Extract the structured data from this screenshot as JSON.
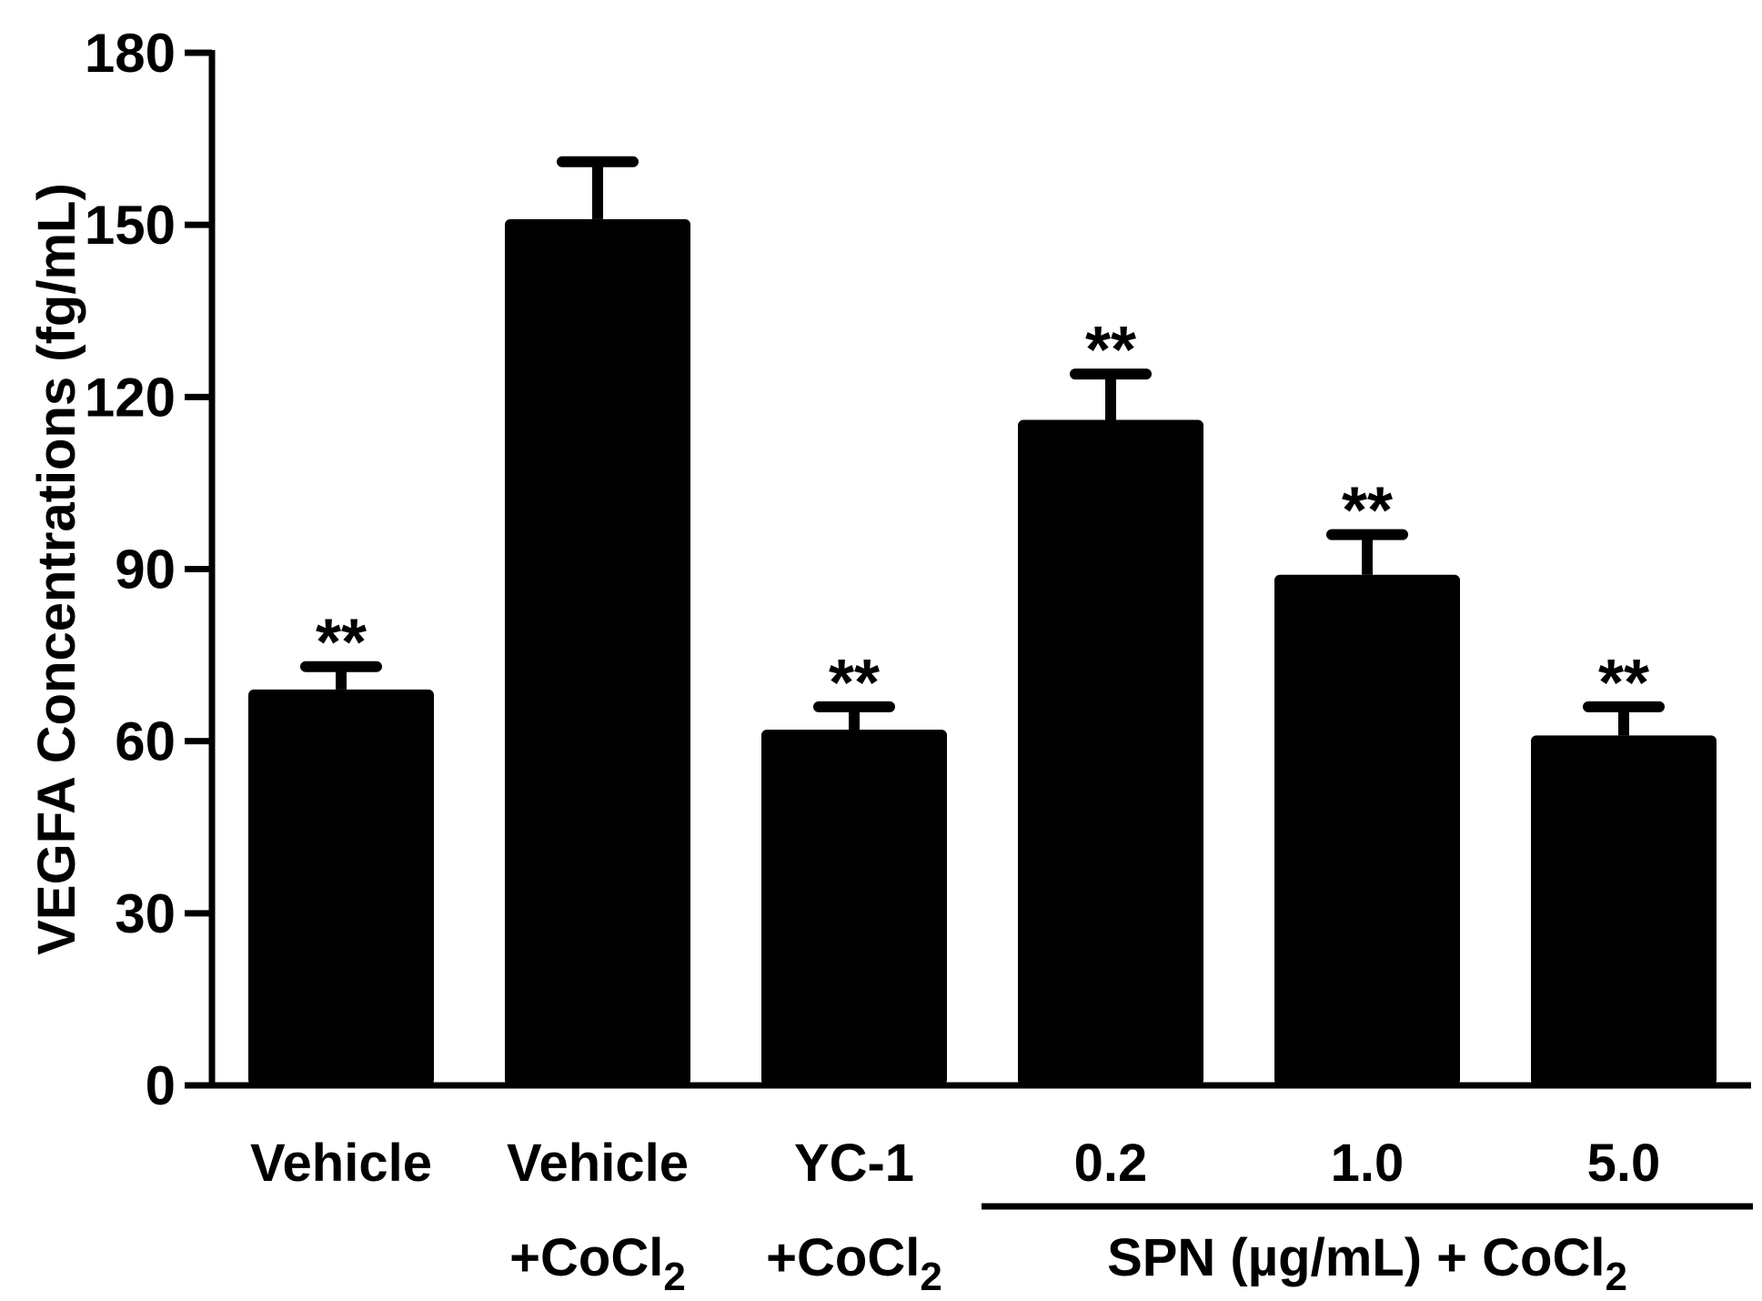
{
  "chart_data": {
    "type": "bar",
    "title": "",
    "xlabel": "",
    "ylabel": "VEGFA Concentrations (fg/mL)",
    "ylim": [
      0,
      180
    ],
    "yticks": [
      0,
      30,
      60,
      90,
      120,
      150,
      180
    ],
    "grid": false,
    "bar_color": "#000000",
    "categories": [
      {
        "line1": "Vehicle",
        "line2": ""
      },
      {
        "line1": "Vehicle",
        "line2": "+CoCl",
        "sub": "2"
      },
      {
        "line1": "YC-1",
        "line2": "+CoCl",
        "sub": "2"
      },
      {
        "line1": "0.2",
        "line2": ""
      },
      {
        "line1": "1.0",
        "line2": ""
      },
      {
        "line1": "5.0",
        "line2": ""
      }
    ],
    "values": [
      69,
      151,
      62,
      116,
      89,
      61
    ],
    "errors": [
      4,
      10,
      4,
      8,
      7,
      5
    ],
    "significance": [
      "**",
      "",
      "**",
      "**",
      "**",
      "**"
    ],
    "group_label": {
      "text": "SPN (µg/mL) + CoCl",
      "sub": "2",
      "from_index": 3,
      "to_index": 5
    }
  }
}
